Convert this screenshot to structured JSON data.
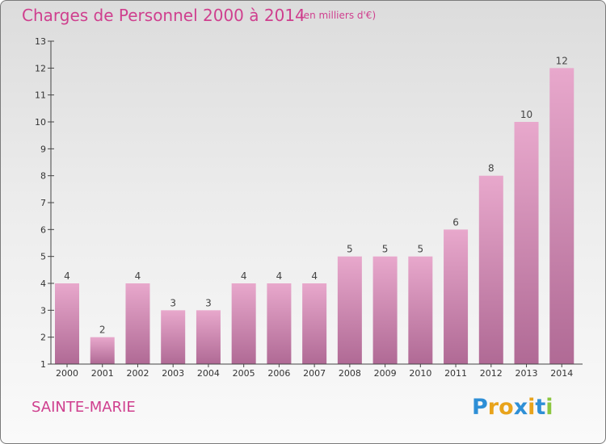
{
  "title": "Charges de Personnel 2000 à 2014",
  "subtitle": "(en milliers d'€)",
  "commune": "SAINTE-MARIE",
  "logo": {
    "letters": [
      "P",
      "r",
      "o",
      "x",
      "i",
      "t",
      "i"
    ],
    "colors": [
      "#2e8fd6",
      "#e8a31b",
      "#e8a31b",
      "#2e8fd6",
      "#e8a31b",
      "#2e8fd6",
      "#8cc63f"
    ]
  },
  "colors": {
    "accent": "#cf3f8e",
    "bar_top": "#e8a8cc",
    "bar_bottom": "#b06a95"
  },
  "chart_data": {
    "type": "bar",
    "title": "Charges de Personnel 2000 à 2014",
    "subtitle": "(en milliers d'€)",
    "categories": [
      "2000",
      "2001",
      "2002",
      "2003",
      "2004",
      "2005",
      "2006",
      "2007",
      "2008",
      "2009",
      "2010",
      "2011",
      "2012",
      "2013",
      "2014"
    ],
    "values": [
      4,
      2,
      4,
      3,
      3,
      4,
      4,
      4,
      5,
      5,
      5,
      6,
      8,
      10,
      12
    ],
    "ylim": [
      1,
      13
    ],
    "yticks": [
      1,
      2,
      3,
      4,
      5,
      6,
      7,
      8,
      9,
      10,
      11,
      12,
      13
    ],
    "grid": false,
    "legend": "none"
  }
}
